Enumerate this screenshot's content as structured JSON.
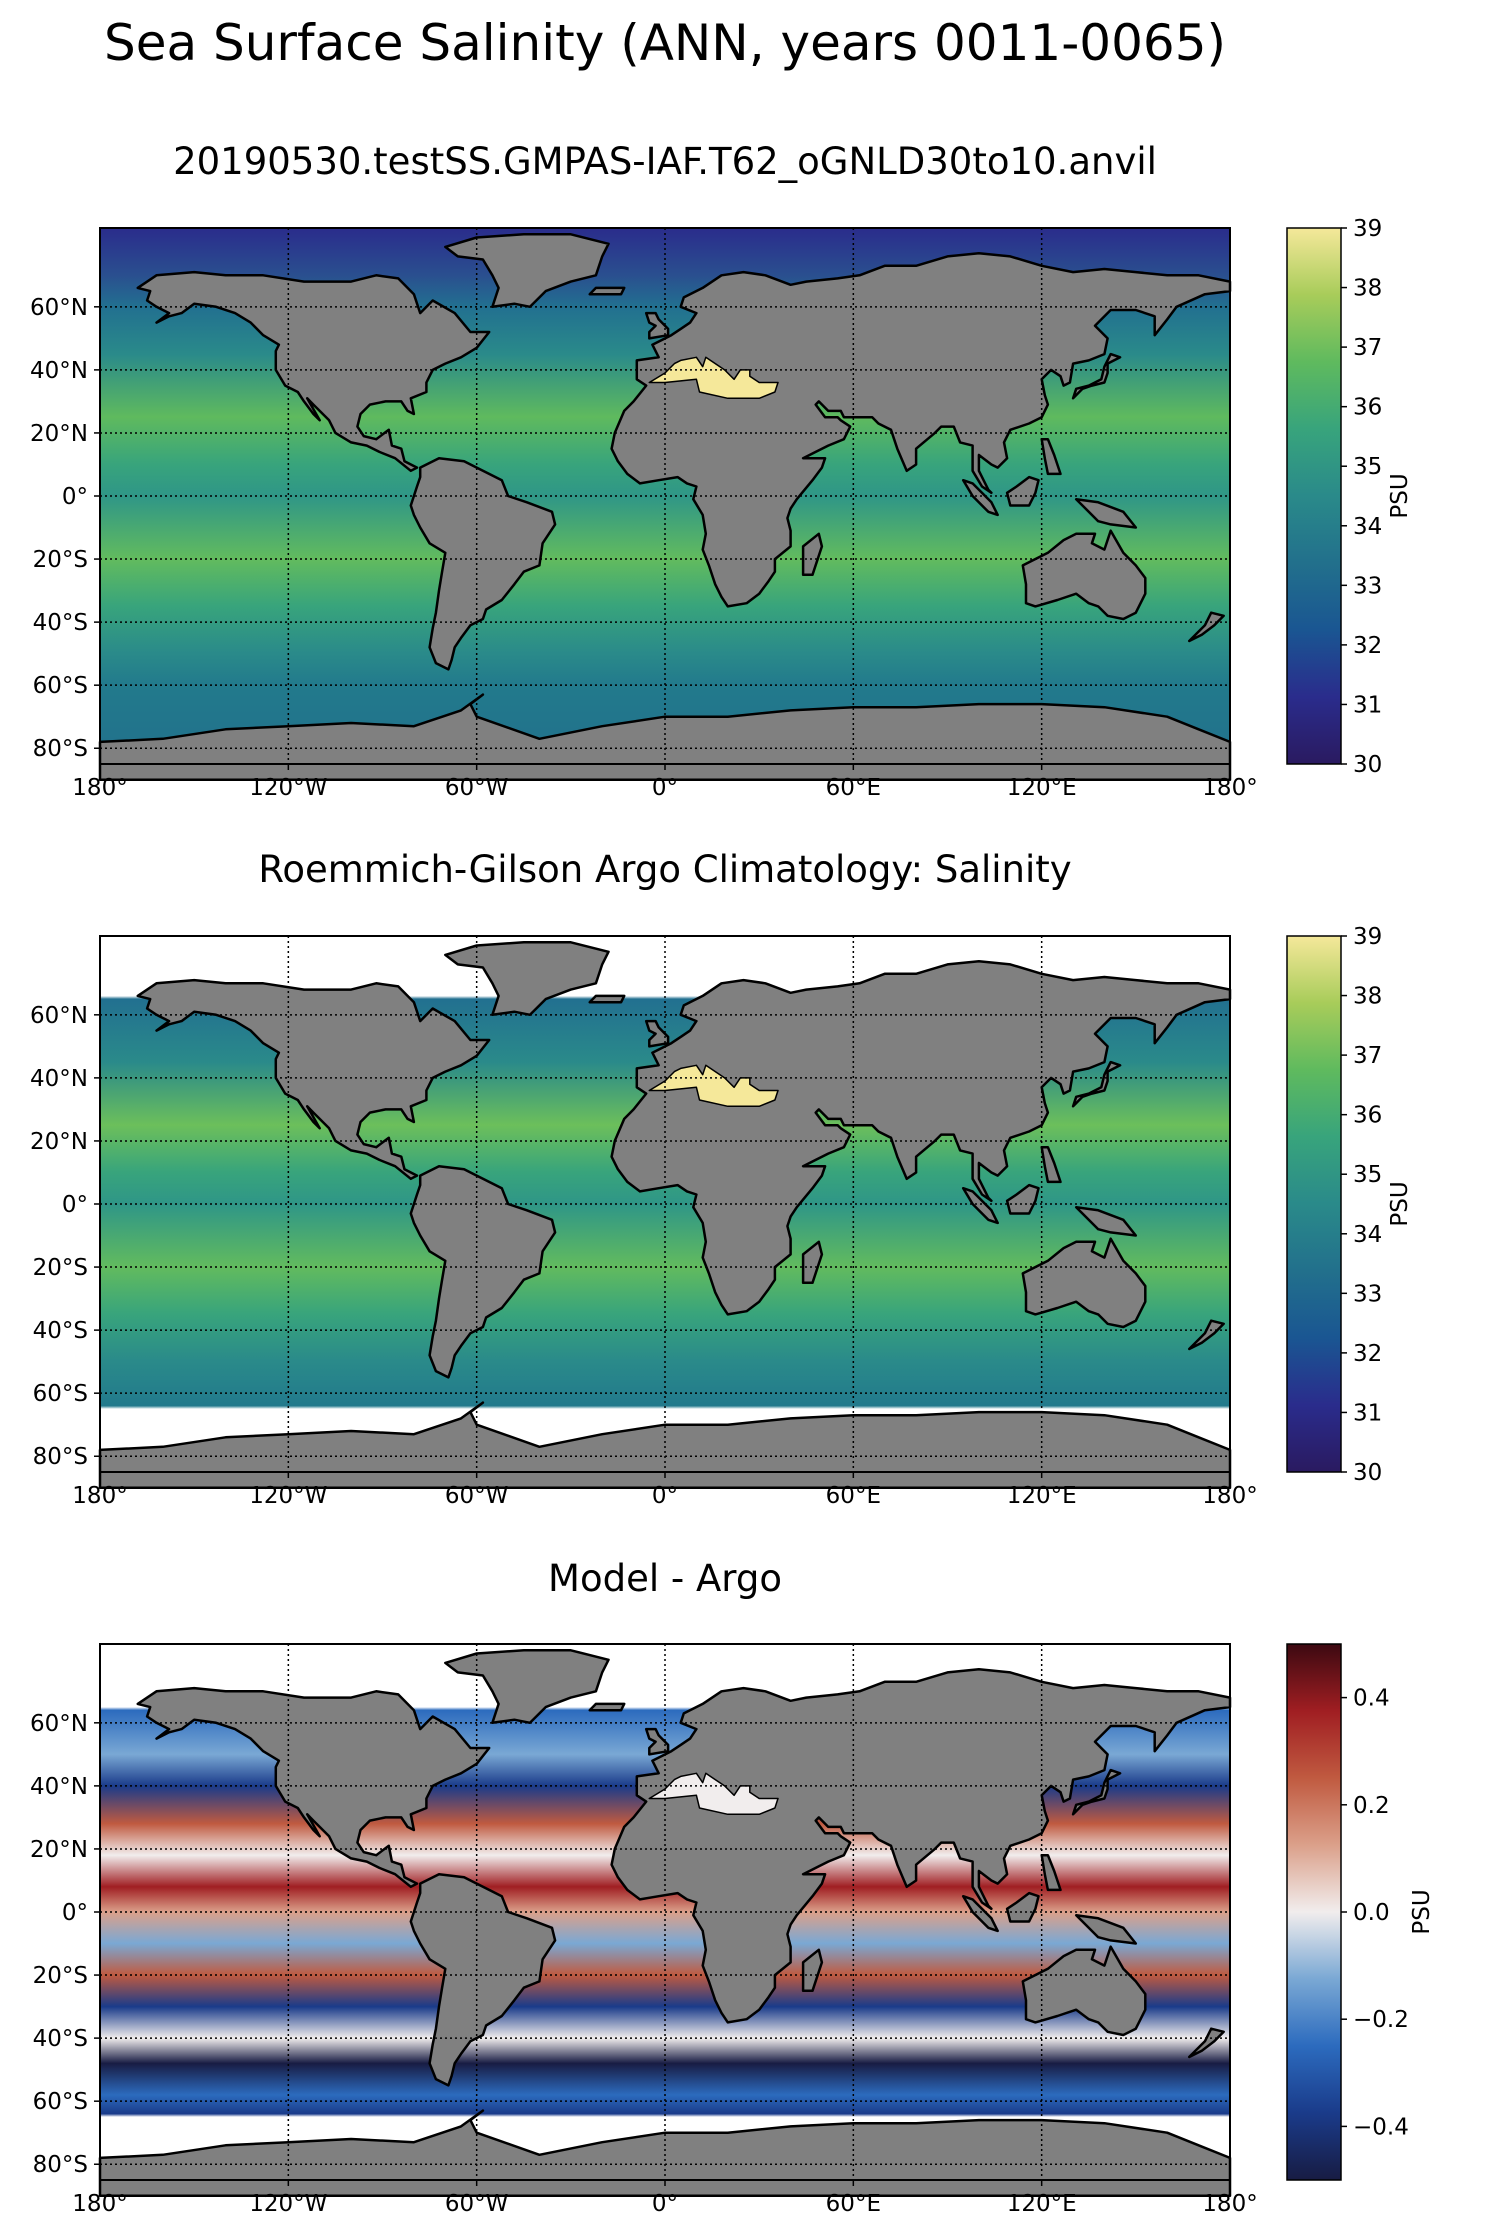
{
  "figure": {
    "suptitle": "Sea Surface Salinity (ANN, years 0011-0065)"
  },
  "panels": [
    {
      "title": "20190530.testSS.GMPAS-IAF.T62_oGNLD30to10.anvil",
      "colormap": "haline",
      "colorbar": {
        "label": "PSU",
        "ticks": [
          "30",
          "31",
          "32",
          "33",
          "34",
          "35",
          "36",
          "37",
          "38",
          "39"
        ],
        "min": 30,
        "max": 39
      },
      "data_coverage": "global ocean including Arctic and Southern Ocean"
    },
    {
      "title": "Roemmich-Gilson Argo Climatology: Salinity",
      "colormap": "haline",
      "colorbar": {
        "label": "PSU",
        "ticks": [
          "30",
          "31",
          "32",
          "33",
          "34",
          "35",
          "36",
          "37",
          "38",
          "39"
        ],
        "min": 30,
        "max": 39
      },
      "data_coverage": "masked north of ~65°N and south of ~65°S, marginal seas blank"
    },
    {
      "title": "Model - Argo",
      "colormap": "balance",
      "colorbar": {
        "label": "PSU",
        "ticks": [
          "−0.4",
          "−0.2",
          "0.0",
          "0.2",
          "0.4"
        ],
        "tick_values": [
          -0.4,
          -0.2,
          0.0,
          0.2,
          0.4
        ],
        "min": -0.5,
        "max": 0.5
      },
      "data_coverage": "same mask as Argo"
    }
  ],
  "axes": {
    "lon_ticks": [
      "180°",
      "120°W",
      "60°W",
      "0°",
      "60°E",
      "120°E",
      "180°"
    ],
    "lat_ticks": [
      "60°N",
      "40°N",
      "20°N",
      "0°",
      "20°S",
      "40°S",
      "60°S",
      "80°S"
    ],
    "lon_values": [
      -180,
      -120,
      -60,
      0,
      60,
      120,
      180
    ],
    "lat_values": [
      60,
      40,
      20,
      0,
      -20,
      -40,
      -60,
      -80
    ],
    "lat_range": [
      -85,
      85
    ],
    "lon_range": [
      -180,
      180
    ],
    "grid": "dotted",
    "projection": "plate carree"
  },
  "colors": {
    "land": "#808080",
    "coast": "#000000",
    "missing": "#ffffff",
    "haline_stops": [
      "#2a1a60",
      "#2a2c8c",
      "#1a5692",
      "#22708c",
      "#2a8a8a",
      "#38a47c",
      "#5fba5e",
      "#a8cc5a",
      "#f5e89a"
    ],
    "balance_stops": [
      "#181c43",
      "#1a3b8a",
      "#2c6bbe",
      "#7aa8d4",
      "#f1eded",
      "#dba08a",
      "#c05a40",
      "#a01e22",
      "#3c0911"
    ]
  }
}
